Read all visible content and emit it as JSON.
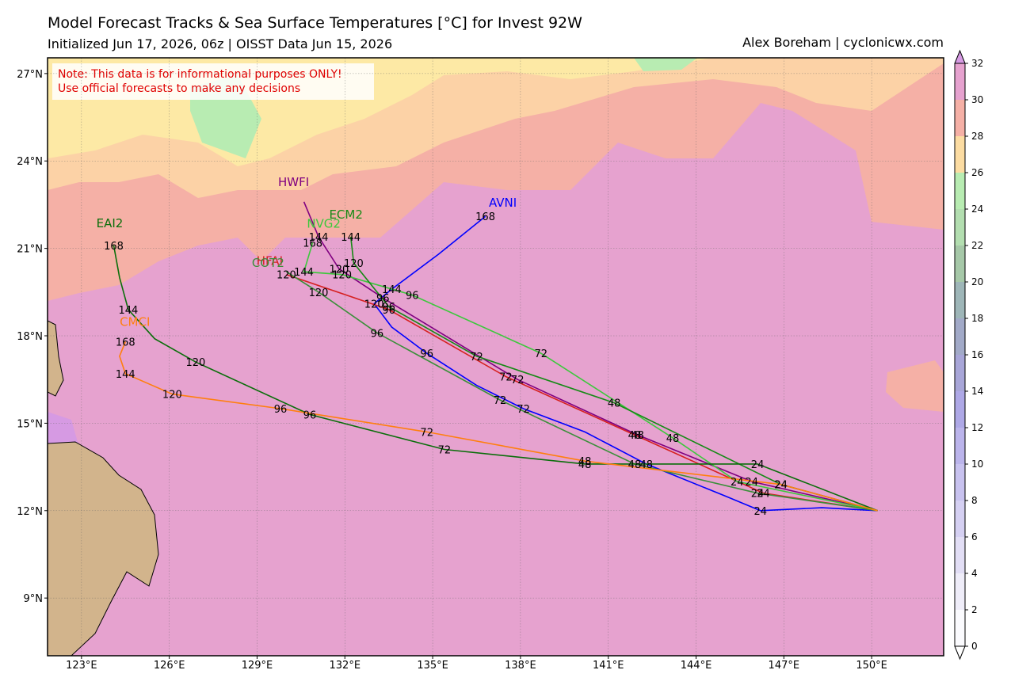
{
  "chart_data": {
    "type": "map",
    "title": "Model Forecast Tracks & Sea Surface Temperatures [°C] for Invest 92W",
    "subtitle": "Initialized Jun 17, 2026, 06z | OISST Data Jun 15, 2026",
    "credit": "Alex Boreham | cyclonicwx.com",
    "note": [
      "Note: This data is for informational purposes ONLY!",
      "Use official forecasts to make any decisions"
    ],
    "xlim": [
      121.84,
      152.46
    ],
    "ylim": [
      7.02,
      27.54
    ],
    "xticks": [
      {
        "value": 123,
        "label": "123°E"
      },
      {
        "value": 126,
        "label": "126°E"
      },
      {
        "value": 129,
        "label": "129°E"
      },
      {
        "value": 132,
        "label": "132°E"
      },
      {
        "value": 135,
        "label": "135°E"
      },
      {
        "value": 138,
        "label": "138°E"
      },
      {
        "value": 141,
        "label": "141°E"
      },
      {
        "value": 144,
        "label": "144°E"
      },
      {
        "value": 147,
        "label": "147°E"
      },
      {
        "value": 150,
        "label": "150°E"
      }
    ],
    "yticks": [
      {
        "value": 9,
        "label": "9°N"
      },
      {
        "value": 12,
        "label": "12°N"
      },
      {
        "value": 15,
        "label": "15°N"
      },
      {
        "value": 18,
        "label": "18°N"
      },
      {
        "value": 21,
        "label": "21°N"
      },
      {
        "value": 24,
        "label": "24°N"
      },
      {
        "value": 27,
        "label": "27°N"
      }
    ],
    "grid": true,
    "tracks": [
      {
        "name": "AVNI",
        "color": "#0000ff",
        "lon": [
          150.2,
          148.3,
          146.2,
          145.0,
          142.3,
          140.2,
          138.1,
          136.5,
          134.8,
          133.6,
          133.0,
          133.6,
          135.2,
          136.8
        ],
        "lat": [
          12.0,
          12.1,
          12.0,
          12.5,
          13.6,
          14.7,
          15.5,
          16.3,
          17.4,
          18.3,
          19.1,
          19.6,
          20.8,
          22.1
        ],
        "hours": [
          null,
          null,
          24,
          null,
          48,
          null,
          72,
          null,
          96,
          null,
          120,
          144,
          null,
          168
        ]
      },
      {
        "name": "HWFI",
        "color": "#800080",
        "lon": [
          150.2,
          145.9,
          142.0,
          137.9,
          133.3,
          131.8,
          131.1,
          130.6
        ],
        "lat": [
          12.0,
          13.0,
          14.6,
          16.5,
          19.3,
          20.3,
          21.4,
          22.6
        ],
        "hours": [
          null,
          24,
          48,
          72,
          96,
          120,
          144,
          null
        ]
      },
      {
        "name": "HFAI",
        "color": "#d62020",
        "lon": [
          150.2,
          146.3,
          141.9,
          137.5,
          133.5,
          130.0
        ],
        "lat": [
          12.0,
          12.6,
          14.6,
          16.6,
          18.9,
          20.1
        ],
        "hours": [
          null,
          24,
          48,
          72,
          96,
          120
        ]
      },
      {
        "name": "NVG2",
        "color": "#3cc83c",
        "lon": [
          150.2,
          145.4,
          143.2,
          138.7,
          134.3,
          131.9,
          130.6,
          130.9
        ],
        "lat": [
          12.0,
          13.0,
          14.5,
          17.4,
          19.4,
          20.1,
          20.2,
          21.2
        ],
        "hours": [
          null,
          24,
          48,
          72,
          96,
          120,
          144,
          168
        ]
      },
      {
        "name": "ECM2",
        "color": "#158a15",
        "lon": [
          150.2,
          146.9,
          141.2,
          136.5,
          133.5,
          132.3,
          132.2
        ],
        "lat": [
          12.0,
          12.9,
          15.7,
          17.3,
          19.0,
          20.5,
          21.4
        ],
        "hours": [
          null,
          24,
          48,
          72,
          96,
          120,
          144
        ]
      },
      {
        "name": "COT2",
        "color": "#3a8f3a",
        "lon": [
          150.2,
          146.1,
          141.9,
          137.3,
          133.1,
          131.1,
          130.0
        ],
        "lat": [
          12.0,
          12.6,
          13.6,
          15.8,
          18.1,
          19.5,
          20.2
        ],
        "hours": [
          null,
          24,
          48,
          72,
          96,
          120,
          null
        ]
      },
      {
        "name": "EAI2",
        "color": "#0a6e0a",
        "lon": [
          150.2,
          146.1,
          140.2,
          135.4,
          130.8,
          126.9,
          125.5,
          124.6,
          124.3,
          124.1
        ],
        "lat": [
          12.0,
          13.6,
          13.6,
          14.1,
          15.3,
          17.1,
          17.9,
          18.9,
          20.0,
          21.1
        ],
        "hours": [
          null,
          24,
          48,
          72,
          96,
          120,
          null,
          144,
          null,
          168
        ]
      },
      {
        "name": "CMCI",
        "color": "#ff7f0e",
        "lon": [
          150.2,
          146.9,
          140.2,
          134.8,
          129.8,
          126.1,
          124.5,
          124.3,
          124.5
        ],
        "lat": [
          12.0,
          12.9,
          13.7,
          14.7,
          15.5,
          16.0,
          16.7,
          17.3,
          17.8
        ],
        "hours": [
          null,
          24,
          48,
          72,
          96,
          120,
          144,
          null,
          168
        ]
      }
    ],
    "colorbar": {
      "ticks": [
        0,
        2,
        4,
        6,
        8,
        10,
        12,
        14,
        16,
        18,
        20,
        22,
        24,
        26,
        28,
        30,
        32
      ],
      "colors": [
        "#fbfbfe",
        "#efedf9",
        "#e2def5",
        "#d5d0f2",
        "#c8c2ef",
        "#bbb4eb",
        "#aea8e6",
        "#a8a6d8",
        "#a2aac8",
        "#9eb6b8",
        "#a6c8a8",
        "#b3deb0",
        "#b8ecb2",
        "#fcdca2",
        "#f5b0a6",
        "#e6a2cf"
      ],
      "over_color": "#d69ae3",
      "under_color": "#ffffff"
    }
  }
}
